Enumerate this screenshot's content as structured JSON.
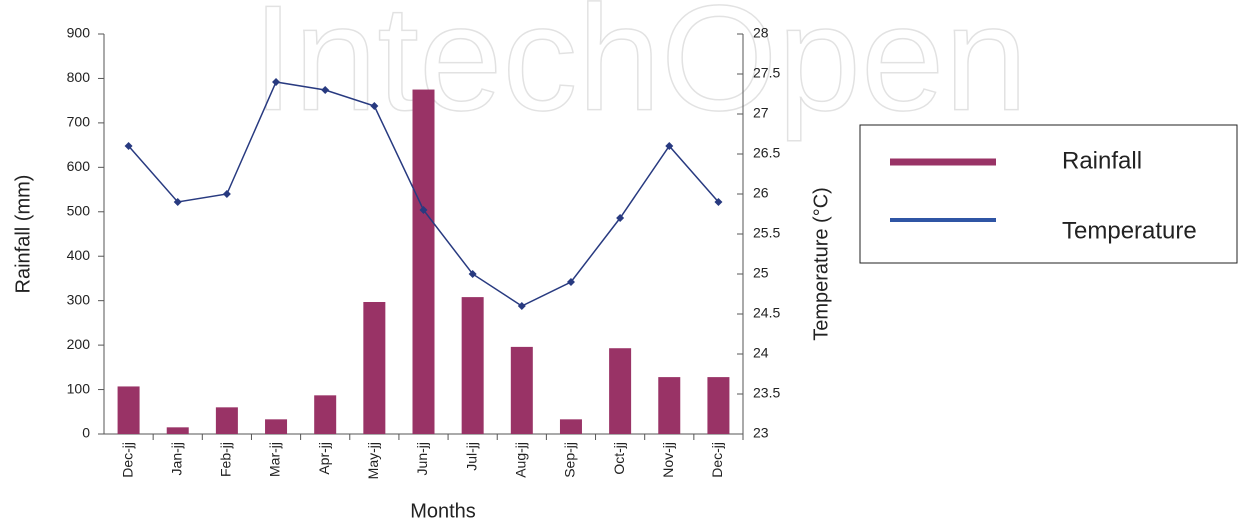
{
  "chart_data": {
    "type": "bar-line",
    "watermark": "IntechOpen",
    "xlabel": "Months",
    "ylabel": "Rainfall (mm)",
    "y2label": "Temperature (°C)",
    "categories": [
      "Dec-jj",
      "Jan-jj",
      "Feb-jj",
      "Mar-jj",
      "Apr-jj",
      "May-jj",
      "Jun-jj",
      "Jul-jj",
      "Aug-jj",
      "Sep-jj",
      "Oct-jj",
      "Nov-jj",
      "Dec-jj"
    ],
    "series": [
      {
        "name": "Rainfall",
        "type": "bar",
        "color": "#993366",
        "values": [
          107,
          15,
          60,
          33,
          87,
          297,
          775,
          308,
          196,
          33,
          193,
          128,
          128
        ]
      },
      {
        "name": "Temperature",
        "type": "line",
        "axis": "y2",
        "color": "#283a80",
        "values": [
          26.6,
          25.9,
          26.0,
          27.4,
          27.3,
          27.1,
          25.8,
          25.0,
          24.6,
          24.9,
          25.7,
          26.6,
          25.9
        ]
      }
    ],
    "ylim": [
      0,
      900
    ],
    "yticks": [
      0,
      100,
      200,
      300,
      400,
      500,
      600,
      700,
      800,
      900
    ],
    "y2lim": [
      23,
      28
    ],
    "y2ticks": [
      23,
      23.5,
      24,
      24.5,
      25,
      25.5,
      26,
      26.5,
      27,
      27.5,
      28
    ],
    "legend": "right"
  }
}
